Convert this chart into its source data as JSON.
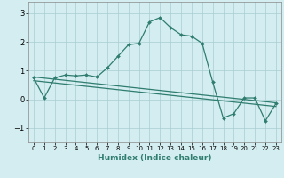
{
  "xlabel": "Humidex (Indice chaleur)",
  "ylabel": "",
  "bg_color": "#d4edf0",
  "grid_color": "#a8cdd1",
  "line_color": "#2e7d6e",
  "xlim": [
    -0.5,
    23.5
  ],
  "ylim": [
    -1.5,
    3.4
  ],
  "yticks": [
    -1,
    0,
    1,
    2,
    3
  ],
  "xticks": [
    0,
    1,
    2,
    3,
    4,
    5,
    6,
    7,
    8,
    9,
    10,
    11,
    12,
    13,
    14,
    15,
    16,
    17,
    18,
    19,
    20,
    21,
    22,
    23
  ],
  "series1_x": [
    0,
    1,
    2,
    3,
    4,
    5,
    6,
    7,
    8,
    9,
    10,
    11,
    12,
    13,
    14,
    15,
    16,
    17,
    18,
    19,
    20,
    21,
    22,
    23
  ],
  "series1_y": [
    0.75,
    0.05,
    0.75,
    0.85,
    0.82,
    0.85,
    0.78,
    1.1,
    1.5,
    1.9,
    1.95,
    2.7,
    2.85,
    2.5,
    2.25,
    2.2,
    1.95,
    0.6,
    -0.65,
    -0.5,
    0.05,
    0.05,
    -0.75,
    -0.15
  ],
  "series2_x": [
    0,
    23
  ],
  "series2_y": [
    0.78,
    -0.12
  ],
  "series3_x": [
    0,
    23
  ],
  "series3_y": [
    0.65,
    -0.25
  ]
}
